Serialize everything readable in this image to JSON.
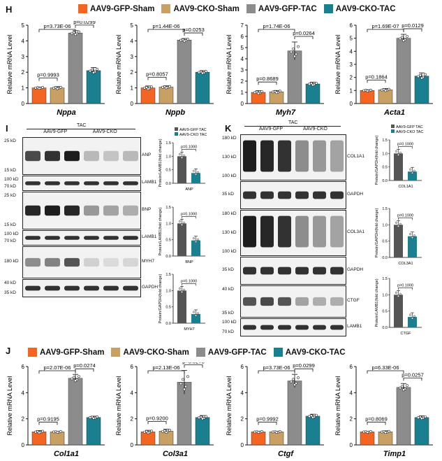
{
  "panels": {
    "H": "H",
    "I": "I",
    "J": "J",
    "K": "K"
  },
  "legend": {
    "items": [
      {
        "label": "AAV9-GFP-Sham",
        "color": "#f26522"
      },
      {
        "label": "AAV9-CKO-Sham",
        "color": "#c9a063"
      },
      {
        "label": "AAV9-GFP-TAC",
        "color": "#8c8c8c"
      },
      {
        "label": "AAV9-CKO-TAC",
        "color": "#1a7f8e"
      }
    ]
  },
  "colors": [
    "#f26522",
    "#c9a063",
    "#8c8c8c",
    "#1a7f8e"
  ],
  "chart_data": [
    {
      "type": "bar",
      "panel": "H",
      "gene": "Nppa",
      "ylabel": "Relative mRNA Level",
      "ylim": [
        0,
        5
      ],
      "ticks": [
        0,
        1,
        2,
        3,
        4,
        5
      ],
      "categories": [
        "AAV9-GFP-Sham",
        "AAV9-CKO-Sham",
        "AAV9-GFP-TAC",
        "AAV9-CKO-TAC"
      ],
      "values": [
        1.0,
        1.0,
        4.5,
        2.1
      ],
      "errors": [
        0.05,
        0.08,
        0.15,
        0.2
      ],
      "pvals": {
        "low": "p=0.9993",
        "high": "p=0.0299",
        "top": "p=3.73E-06"
      }
    },
    {
      "type": "bar",
      "panel": "H",
      "gene": "Nppb",
      "ylabel": "Relative mRNA Level",
      "ylim": [
        0,
        5
      ],
      "ticks": [
        0,
        1,
        2,
        3,
        4,
        5
      ],
      "categories": [
        "AAV9-GFP-Sham",
        "AAV9-CKO-Sham",
        "AAV9-GFP-TAC",
        "AAV9-CKO-TAC"
      ],
      "values": [
        1.0,
        1.05,
        4.05,
        2.0
      ],
      "errors": [
        0.12,
        0.08,
        0.1,
        0.1
      ],
      "pvals": {
        "low": "p=0.8057",
        "high": "p=0.0253",
        "top": "p=1.44E-06"
      }
    },
    {
      "type": "bar",
      "panel": "H",
      "gene": "Myh7",
      "ylabel": "Relative mRNA Level",
      "ylim": [
        0,
        7
      ],
      "ticks": [
        0,
        1,
        2,
        3,
        4,
        5,
        6,
        7
      ],
      "categories": [
        "AAV9-GFP-Sham",
        "AAV9-CKO-Sham",
        "AAV9-GFP-TAC",
        "AAV9-CKO-TAC"
      ],
      "values": [
        1.0,
        1.05,
        4.7,
        1.75
      ],
      "errors": [
        0.15,
        0.12,
        0.8,
        0.15
      ],
      "pvals": {
        "low": "p=0.8689",
        "high": "p=0.0264",
        "top": "p=1.74E-06"
      }
    },
    {
      "type": "bar",
      "panel": "H",
      "gene": "Acta1",
      "ylabel": "Relative mRNA Level",
      "ylim": [
        0,
        6
      ],
      "ticks": [
        0,
        1,
        2,
        3,
        4,
        5,
        6
      ],
      "categories": [
        "AAV9-GFP-Sham",
        "AAV9-CKO-Sham",
        "AAV9-GFP-TAC",
        "AAV9-CKO-TAC"
      ],
      "values": [
        1.0,
        1.05,
        5.0,
        2.1
      ],
      "errors": [
        0.06,
        0.1,
        0.3,
        0.25
      ],
      "pvals": {
        "low": "p=0.1864",
        "high": "p=0.0129",
        "top": "p=1.69E-07"
      }
    },
    {
      "type": "bar",
      "panel": "J",
      "gene": "Col1a1",
      "ylabel": "Relative mRNA Level",
      "ylim": [
        0,
        6
      ],
      "ticks": [
        0,
        2,
        4,
        6
      ],
      "categories": [
        "AAV9-GFP-Sham",
        "AAV9-CKO-Sham",
        "AAV9-GFP-TAC",
        "AAV9-CKO-TAC"
      ],
      "values": [
        1.0,
        1.0,
        5.1,
        2.1
      ],
      "errors": [
        0.1,
        0.05,
        0.3,
        0.1
      ],
      "pvals": {
        "low": "p=0.9195",
        "high": "p=0.0274",
        "top": "p=2.07E-06"
      }
    },
    {
      "type": "bar",
      "panel": "J",
      "gene": "Col3a1",
      "ylabel": "Relative mRNA Level",
      "ylim": [
        0,
        6
      ],
      "ticks": [
        0,
        2,
        4,
        6
      ],
      "categories": [
        "AAV9-GFP-Sham",
        "AAV9-CKO-Sham",
        "AAV9-GFP-TAC",
        "AAV9-CKO-TAC"
      ],
      "values": [
        1.0,
        1.05,
        4.8,
        2.1
      ],
      "errors": [
        0.12,
        0.15,
        0.9,
        0.15
      ],
      "pvals": {
        "low": "p=0.9200",
        "high": "p=0.0278",
        "top": "p=2.13E-06"
      }
    },
    {
      "type": "bar",
      "panel": "J",
      "gene": "Ctgf",
      "ylabel": "Relative mRNA Level",
      "ylim": [
        0,
        6
      ],
      "ticks": [
        0,
        2,
        4,
        6
      ],
      "categories": [
        "AAV9-GFP-Sham",
        "AAV9-CKO-Sham",
        "AAV9-GFP-TAC",
        "AAV9-CKO-TAC"
      ],
      "values": [
        1.0,
        1.0,
        4.9,
        2.2
      ],
      "errors": [
        0.05,
        0.05,
        0.5,
        0.15
      ],
      "pvals": {
        "low": "p=0.9992",
        "high": "p=0.0299",
        "top": "p=3.73E-06"
      }
    },
    {
      "type": "bar",
      "panel": "J",
      "gene": "Timp1",
      "ylabel": "Relative mRNA Level",
      "ylim": [
        0,
        6
      ],
      "ticks": [
        0,
        2,
        4,
        6
      ],
      "categories": [
        "AAV9-GFP-Sham",
        "AAV9-CKO-Sham",
        "AAV9-GFP-TAC",
        "AAV9-CKO-TAC"
      ],
      "values": [
        1.0,
        1.0,
        4.4,
        2.1
      ],
      "errors": [
        0.05,
        0.08,
        0.3,
        0.12
      ],
      "pvals": {
        "low": "p=0.8069",
        "high": "p=0.0257",
        "top": "p=6.33E-06"
      }
    }
  ],
  "small_charts": [
    {
      "panel": "I",
      "legend": true,
      "ylabel": "Protein/LAMB1(fold change)",
      "xlabel": "ANP",
      "ylim": [
        0,
        1.5
      ],
      "ticks": [
        "0.0",
        "0.5",
        "1.0",
        "1.5"
      ],
      "values": [
        1.0,
        0.38
      ],
      "pval": "p=0.1000"
    },
    {
      "panel": "I",
      "legend": false,
      "ylabel": "Protein/LAMB1(fold change)",
      "xlabel": "BNP",
      "ylim": [
        0,
        1.5
      ],
      "ticks": [
        "0.0",
        "0.5",
        "1.0",
        "1.5"
      ],
      "values": [
        1.0,
        0.48
      ],
      "pval": "p=0.1000"
    },
    {
      "panel": "I",
      "legend": false,
      "ylabel": "Protein/GAPDH(fold change)",
      "xlabel": "MYH7",
      "ylim": [
        0,
        1.5
      ],
      "ticks": [
        "0.0",
        "0.5",
        "1.0",
        "1.5"
      ],
      "values": [
        1.0,
        0.28
      ],
      "pval": "p=0.1000"
    },
    {
      "panel": "K",
      "legend": true,
      "ylabel": "Protein/GAPDH(fold change)",
      "xlabel": "COL1A1",
      "ylim": [
        0,
        1.5
      ],
      "ticks": [
        "0.0",
        "0.5",
        "1.0",
        "1.5"
      ],
      "values": [
        1.0,
        0.33
      ],
      "pval": "p=0.1000"
    },
    {
      "panel": "K",
      "legend": false,
      "ylabel": "Protein/GAPDH(fold change)",
      "xlabel": "COL3A1",
      "ylim": [
        0,
        1.5
      ],
      "ticks": [
        "0.0",
        "0.5",
        "1.0",
        "1.5"
      ],
      "values": [
        1.0,
        0.65
      ],
      "pval": "p=0.1000"
    },
    {
      "panel": "K",
      "legend": false,
      "ylabel": "Protein/LAMB1(fold change)",
      "xlabel": "CTGF",
      "ylim": [
        0,
        1.5
      ],
      "ticks": [
        "0.0",
        "0.5",
        "1.0",
        "1.5"
      ],
      "values": [
        1.0,
        0.32
      ],
      "pval": "p=0.1000"
    }
  ],
  "small_legend": [
    "AAV9-GFP TAC",
    "AAV9-CKO TAC"
  ],
  "blots": {
    "I": {
      "header": "TAC",
      "groups": [
        "AAV9-GFP",
        "AAV9-CKO"
      ],
      "rows": [
        {
          "label": "ANP",
          "mw": [
            "25 kD",
            "15 kD"
          ],
          "pattern": "anp"
        },
        {
          "label": "LAMB1",
          "mw": [
            "100 kD",
            "70 kD"
          ],
          "pattern": "even"
        },
        {
          "label": "BNP",
          "mw": [
            "25 kD",
            "15 kD"
          ],
          "pattern": "bnp"
        },
        {
          "label": "LAMB1",
          "mw": [
            "100 kD",
            "70 kD"
          ],
          "pattern": "even"
        },
        {
          "label": "MYH7",
          "mw": [
            "180 kD"
          ],
          "pattern": "myh7"
        },
        {
          "label": "GAPDH",
          "mw": [
            "40 kD",
            "35 kD"
          ],
          "pattern": "even"
        }
      ]
    },
    "K": {
      "header": "TAC",
      "groups": [
        "AAV9-GFP",
        "AAV9-CKO"
      ],
      "rows": [
        {
          "label": "COL1A1",
          "mw": [
            "180 kD",
            "130 kD",
            "100 kD"
          ],
          "pattern": "col"
        },
        {
          "label": "GAPDH",
          "mw": [
            "35 kD"
          ],
          "pattern": "even"
        },
        {
          "label": "COL3A1",
          "mw": [
            "180 kD",
            "130 kD",
            "100 kD"
          ],
          "pattern": "col"
        },
        {
          "label": "GAPDH",
          "mw": [
            "35 kD"
          ],
          "pattern": "even"
        },
        {
          "label": "CTGF",
          "mw": [
            "40 kD",
            "35 kD"
          ],
          "pattern": "ctgf"
        },
        {
          "label": "LAMB1",
          "mw": [
            "100 kD",
            "70 kD"
          ],
          "pattern": "even"
        }
      ]
    }
  }
}
